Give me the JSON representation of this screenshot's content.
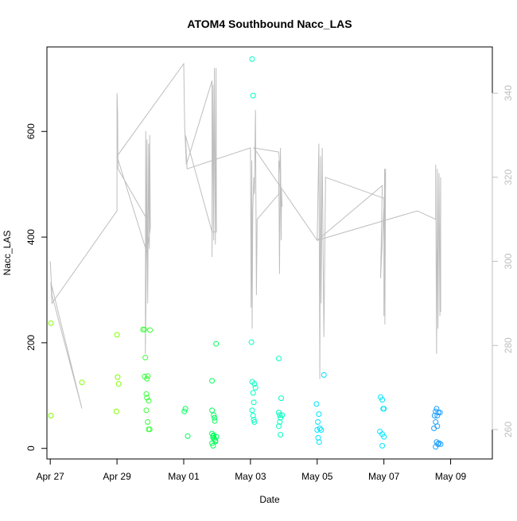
{
  "chart_data": {
    "type": "scatter",
    "title": "ATOM4 Southbound Nacc_LAS",
    "xlabel": "Date",
    "ylabel": "Nacc_LAS",
    "y2label": "",
    "xlim": [
      -0.1,
      13.25
    ],
    "ylim": [
      -20,
      760
    ],
    "y2lim": [
      253,
      351
    ],
    "x_ticks": [
      {
        "value": 0,
        "label": "Apr 27"
      },
      {
        "value": 2,
        "label": "Apr 29"
      },
      {
        "value": 4,
        "label": "May 01"
      },
      {
        "value": 6,
        "label": "May 03"
      },
      {
        "value": 8,
        "label": "May 05"
      },
      {
        "value": 10,
        "label": "May 07"
      },
      {
        "value": 12,
        "label": "May 09"
      }
    ],
    "y_ticks": [
      0,
      200,
      400,
      600
    ],
    "y2_ticks": [
      260,
      280,
      300,
      320,
      340
    ],
    "grid": false,
    "legend": "none",
    "x_units": "days since Apr 27",
    "series": [
      {
        "color": "#7fff00",
        "points": [
          [
            0.02,
            62
          ],
          [
            0.02,
            237
          ],
          [
            0.95,
            125
          ],
          [
            1.98,
            70
          ],
          [
            2.0,
            215
          ],
          [
            2.02,
            135
          ],
          [
            2.05,
            122
          ]
        ]
      },
      {
        "color": "#3cff3c",
        "points": [
          [
            2.78,
            225
          ],
          [
            2.82,
            225
          ],
          [
            2.83,
            136
          ],
          [
            2.85,
            172
          ],
          [
            2.9,
            132
          ],
          [
            2.92,
            137
          ],
          [
            2.88,
            103
          ],
          [
            2.9,
            96
          ],
          [
            2.95,
            90
          ],
          [
            2.88,
            72
          ],
          [
            2.92,
            50
          ],
          [
            2.95,
            36
          ],
          [
            2.98,
            36
          ],
          [
            2.99,
            224
          ]
        ]
      },
      {
        "color": "#00ff59",
        "points": [
          [
            4.02,
            70
          ],
          [
            4.05,
            75
          ],
          [
            4.12,
            23
          ],
          [
            4.85,
            128
          ],
          [
            4.85,
            72
          ],
          [
            4.85,
            10
          ],
          [
            4.88,
            5
          ],
          [
            4.9,
            63
          ],
          [
            4.92,
            58
          ],
          [
            4.93,
            52
          ],
          [
            4.85,
            28
          ],
          [
            4.88,
            23
          ],
          [
            4.92,
            18
          ],
          [
            4.95,
            13
          ],
          [
            4.88,
            20
          ],
          [
            4.9,
            25
          ],
          [
            4.95,
            15
          ],
          [
            4.98,
            22
          ],
          [
            4.97,
            198
          ]
        ]
      },
      {
        "color": "#00ffbf",
        "points": [
          [
            6.05,
            737
          ],
          [
            6.08,
            668
          ],
          [
            6.03,
            201
          ],
          [
            6.05,
            126
          ],
          [
            6.08,
            105
          ],
          [
            6.12,
            122
          ],
          [
            6.15,
            115
          ],
          [
            6.1,
            87
          ],
          [
            6.05,
            72
          ],
          [
            6.08,
            62
          ],
          [
            6.1,
            54
          ],
          [
            6.12,
            50
          ],
          [
            6.85,
            170
          ],
          [
            6.85,
            68
          ],
          [
            6.88,
            63
          ],
          [
            6.9,
            58
          ],
          [
            6.92,
            95
          ],
          [
            6.95,
            63
          ],
          [
            6.88,
            50
          ],
          [
            6.85,
            42
          ],
          [
            6.9,
            26
          ]
        ]
      },
      {
        "color": "#00e5ff",
        "points": [
          [
            7.98,
            84
          ],
          [
            8.05,
            65
          ],
          [
            8.0,
            35
          ],
          [
            8.02,
            50
          ],
          [
            8.08,
            38
          ],
          [
            8.12,
            35
          ],
          [
            8.03,
            20
          ],
          [
            8.06,
            12
          ],
          [
            8.2,
            139
          ],
          [
            9.9,
            97
          ],
          [
            9.95,
            92
          ],
          [
            10.0,
            75
          ],
          [
            9.98,
            75
          ],
          [
            9.88,
            32
          ],
          [
            9.95,
            27
          ],
          [
            10.0,
            22
          ],
          [
            9.95,
            5
          ]
        ]
      },
      {
        "color": "#1a9fff",
        "points": [
          [
            11.55,
            70
          ],
          [
            11.58,
            75
          ],
          [
            11.6,
            62
          ],
          [
            11.63,
            68
          ],
          [
            11.68,
            68
          ],
          [
            11.5,
            38
          ],
          [
            11.55,
            50
          ],
          [
            11.6,
            42
          ],
          [
            11.52,
            62
          ],
          [
            11.58,
            12
          ],
          [
            11.62,
            8
          ],
          [
            11.65,
            10
          ],
          [
            11.7,
            8
          ],
          [
            11.55,
            3
          ]
        ]
      }
    ],
    "secondary_line": {
      "color": "#bebebe",
      "axis": "right",
      "points": [
        [
          0.0,
          300
        ],
        [
          0.05,
          292
        ],
        [
          0.95,
          265
        ],
        [
          0.02,
          295
        ],
        [
          0.05,
          290
        ],
        [
          2.0,
          312
        ],
        [
          2.0,
          340
        ],
        [
          2.02,
          335
        ],
        [
          2.03,
          322
        ],
        [
          2.9,
          310
        ],
        [
          2.85,
          278
        ],
        [
          2.86,
          331
        ],
        [
          2.88,
          298
        ],
        [
          2.9,
          329
        ],
        [
          2.92,
          290
        ],
        [
          2.95,
          328
        ],
        [
          2.97,
          303
        ],
        [
          2.98,
          330
        ],
        [
          3.0,
          308
        ],
        [
          2.9,
          302
        ],
        [
          2.0,
          325
        ],
        [
          4.0,
          347
        ],
        [
          4.03,
          332
        ],
        [
          4.08,
          323
        ],
        [
          4.85,
          343
        ],
        [
          4.85,
          301
        ],
        [
          4.88,
          342
        ],
        [
          4.9,
          305
        ],
        [
          4.92,
          346
        ],
        [
          4.95,
          304
        ],
        [
          4.97,
          346
        ],
        [
          4.98,
          307
        ],
        [
          4.85,
          307
        ],
        [
          4.05,
          330
        ],
        [
          4.1,
          322
        ],
        [
          6.0,
          327
        ],
        [
          6.02,
          289
        ],
        [
          6.04,
          324
        ],
        [
          6.05,
          284
        ],
        [
          6.07,
          312
        ],
        [
          6.1,
          320
        ],
        [
          6.12,
          316
        ],
        [
          6.15,
          336
        ],
        [
          6.18,
          292
        ],
        [
          6.2,
          310
        ],
        [
          6.85,
          316
        ],
        [
          6.85,
          324
        ],
        [
          6.87,
          297
        ],
        [
          6.9,
          327
        ],
        [
          6.92,
          305
        ],
        [
          6.93,
          317
        ],
        [
          6.95,
          313
        ],
        [
          6.85,
          326
        ],
        [
          6.1,
          327
        ],
        [
          8.0,
          305
        ],
        [
          8.05,
          328
        ],
        [
          8.08,
          272
        ],
        [
          8.1,
          325
        ],
        [
          8.12,
          290
        ],
        [
          8.15,
          327
        ],
        [
          8.2,
          282
        ],
        [
          8.25,
          320
        ],
        [
          10.0,
          315
        ],
        [
          10.0,
          287
        ],
        [
          10.02,
          322
        ],
        [
          10.03,
          285
        ],
        [
          10.05,
          322
        ],
        [
          9.9,
          296
        ],
        [
          9.95,
          318
        ],
        [
          8.0,
          305
        ],
        [
          11.0,
          312
        ],
        [
          11.55,
          310
        ],
        [
          11.55,
          323
        ],
        [
          11.58,
          278
        ],
        [
          11.6,
          322
        ],
        [
          11.62,
          284
        ],
        [
          11.65,
          321
        ],
        [
          11.68,
          287
        ],
        [
          11.7,
          320
        ],
        [
          11.7,
          288
        ]
      ]
    }
  }
}
